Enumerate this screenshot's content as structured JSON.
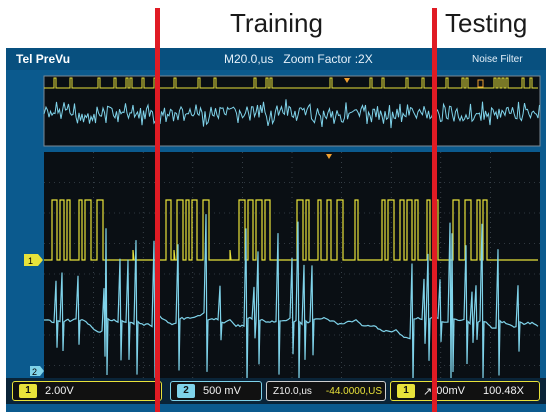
{
  "annotations": {
    "training": "Training",
    "testing": "Testing"
  },
  "header": {
    "brand": "Tel PreVu",
    "timebase": "M20.0,us",
    "zoom": "Zoom Factor :2X",
    "filter": "Noise Filter"
  },
  "markers": {
    "ch1": "1",
    "ch2": "2"
  },
  "status": {
    "ch1": {
      "num": "1",
      "scale": "2.00V"
    },
    "ch2": {
      "num": "2",
      "scale": "500 mV"
    },
    "timebase": {
      "scale": "Z10.0,us",
      "position": "-44.0000,US"
    },
    "trigger": {
      "num": "1",
      "level": "00mV",
      "sample": "100.48X"
    }
  },
  "colors": {
    "ch1": "#e8e23a",
    "ch2": "#7fd3ea",
    "divider": "#e01b24",
    "bezel": "#0b5a8e"
  }
}
